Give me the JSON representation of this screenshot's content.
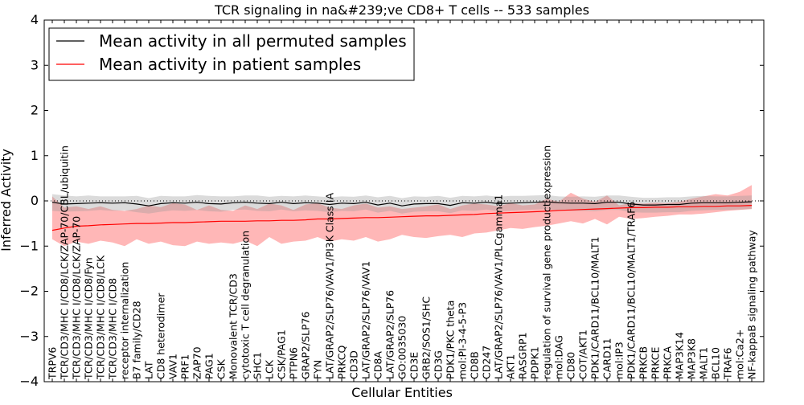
{
  "chart_data": {
    "type": "line",
    "title": "TCR signaling in na&#239;ve CD8+ T cells -- 533 samples",
    "xlabel": "Cellular Entities",
    "ylabel": "Inferred Activity",
    "ylim": [
      -4,
      4
    ],
    "yticks": [
      -4,
      -3,
      -2,
      -1,
      0,
      1,
      2,
      3,
      4
    ],
    "ytick_labels": [
      "−4",
      "−3",
      "−2",
      "−1",
      "0",
      "1",
      "2",
      "3",
      "4"
    ],
    "baseline": 0,
    "legend": {
      "location": "top-left",
      "entries": [
        {
          "label": "Mean activity in all permuted samples",
          "color": "#000000"
        },
        {
          "label": "Mean activity in patient samples",
          "color": "#ff0000"
        }
      ]
    },
    "categories": [
      "TRPV6",
      "TCR/CD3/MHC I/CD8/LCK/ZAP-70/CBL/ubiquitin",
      "TCR/CD3/MHC I/CD8/LCK/ZAP-70",
      "TCR/CD3/MHC I/CD8/Fyn",
      "TCR/CD3/MHC I/CD8/LCK",
      "TCR/CD3/MHC I/CD8",
      "receptor internalization",
      "B7 family/CD28",
      "LAT",
      "CD8 heterodimer",
      "VAV1",
      "PRF1",
      "ZAP70",
      "PAG1",
      "CSK",
      "Monovalent TCR/CD3",
      "cytotoxic T cell degranulation",
      "SHC1",
      "LCK",
      "CSK/PAG1",
      "PTPN6",
      "GRAP2/SLP76",
      "FYN",
      "LAT/GRAP2/SLP76/VAV1/PI3K Class IA",
      "PRKCQ",
      "CD3D",
      "LAT/GRAP2/SLP76/VAV1",
      "CD8A",
      "LAT/GRAP2/SLP76",
      "GO:0035030",
      "CD3E",
      "GRB2/SOS1/SHC",
      "CD3G",
      "PDK1/PKC theta",
      "mol:PI-3-4-5-P3",
      "CD8B",
      "CD247",
      "LAT/GRAP2/SLP76/VAV1/PLCgamma1",
      "AKT1",
      "RASGRP1",
      "PDPK1",
      "regulation of survival gene product expression",
      "mol:DAG",
      "CD80",
      "COT/AKT1",
      "PDK1/CARD11/BCL10/MALT1",
      "CARD11",
      "mol:IP3",
      "PDK1/CARD11/BCL10/MALT1/TRAF6",
      "PRKCB",
      "PRKCE",
      "PRKCA",
      "MAP3K14",
      "MAP3K8",
      "MALT1",
      "BCL10",
      "TRAF6",
      "mol:Ca2+",
      "NF-kappaB signaling pathway"
    ],
    "series": [
      {
        "name": "Mean activity in all permuted samples",
        "color": "#000000",
        "values": [
          -0.03,
          -0.07,
          -0.06,
          -0.05,
          -0.04,
          -0.05,
          -0.04,
          -0.07,
          -0.11,
          -0.06,
          -0.04,
          -0.05,
          -0.03,
          -0.06,
          -0.07,
          -0.04,
          -0.03,
          -0.05,
          -0.06,
          -0.03,
          -0.06,
          -0.04,
          -0.05,
          -0.08,
          -0.05,
          -0.06,
          -0.03,
          -0.09,
          -0.05,
          -0.11,
          -0.07,
          -0.06,
          -0.06,
          -0.1,
          -0.04,
          -0.05,
          -0.03,
          -0.06,
          -0.05,
          -0.04,
          -0.03,
          -0.02,
          -0.04,
          -0.05,
          -0.05,
          -0.06,
          -0.03,
          -0.03,
          -0.07,
          -0.09,
          -0.09,
          -0.08,
          -0.08,
          -0.05,
          -0.04,
          -0.04,
          -0.04,
          -0.03,
          -0.02
        ],
        "band_upper": [
          0.15,
          0.12,
          0.1,
          0.12,
          0.1,
          0.1,
          0.1,
          0.11,
          0.06,
          0.11,
          0.1,
          0.1,
          0.13,
          0.11,
          0.1,
          0.1,
          0.12,
          0.12,
          0.09,
          0.11,
          0.1,
          0.12,
          0.1,
          0.08,
          0.1,
          0.09,
          0.12,
          0.08,
          0.11,
          0.06,
          0.1,
          0.09,
          0.11,
          0.07,
          0.11,
          0.1,
          0.12,
          0.09,
          0.11,
          0.11,
          0.12,
          0.13,
          0.1,
          0.09,
          0.1,
          0.09,
          0.12,
          0.12,
          0.09,
          0.07,
          0.07,
          0.08,
          0.08,
          0.1,
          0.11,
          0.1,
          0.1,
          0.11,
          0.12
        ],
        "band_lower": [
          -0.22,
          -0.24,
          -0.23,
          -0.22,
          -0.2,
          -0.22,
          -0.21,
          -0.25,
          -0.28,
          -0.24,
          -0.21,
          -0.22,
          -0.2,
          -0.23,
          -0.24,
          -0.2,
          -0.19,
          -0.22,
          -0.23,
          -0.19,
          -0.23,
          -0.21,
          -0.22,
          -0.25,
          -0.22,
          -0.23,
          -0.19,
          -0.26,
          -0.22,
          -0.28,
          -0.24,
          -0.23,
          -0.23,
          -0.27,
          -0.21,
          -0.22,
          -0.19,
          -0.23,
          -0.22,
          -0.2,
          -0.19,
          -0.18,
          -0.21,
          -0.22,
          -0.22,
          -0.23,
          -0.2,
          -0.2,
          -0.25,
          -0.26,
          -0.26,
          -0.25,
          -0.25,
          -0.22,
          -0.21,
          -0.2,
          -0.2,
          -0.19,
          -0.18
        ]
      },
      {
        "name": "Mean activity in patient samples",
        "color": "#ff0000",
        "values": [
          -0.65,
          -0.6,
          -0.56,
          -0.55,
          -0.53,
          -0.52,
          -0.51,
          -0.5,
          -0.5,
          -0.49,
          -0.48,
          -0.48,
          -0.47,
          -0.46,
          -0.45,
          -0.45,
          -0.45,
          -0.44,
          -0.44,
          -0.43,
          -0.43,
          -0.42,
          -0.4,
          -0.4,
          -0.39,
          -0.38,
          -0.37,
          -0.37,
          -0.36,
          -0.35,
          -0.34,
          -0.33,
          -0.33,
          -0.32,
          -0.31,
          -0.3,
          -0.28,
          -0.27,
          -0.26,
          -0.25,
          -0.24,
          -0.23,
          -0.21,
          -0.2,
          -0.19,
          -0.18,
          -0.17,
          -0.16,
          -0.15,
          -0.15,
          -0.14,
          -0.14,
          -0.13,
          -0.13,
          -0.12,
          -0.12,
          -0.11,
          -0.11,
          -0.1
        ],
        "band_upper": [
          0.1,
          -0.15,
          -0.12,
          -0.18,
          -0.12,
          -0.2,
          -0.22,
          -0.18,
          -0.1,
          -0.14,
          -0.05,
          -0.08,
          -0.2,
          -0.1,
          -0.2,
          -0.22,
          -0.1,
          -0.18,
          -0.06,
          -0.1,
          -0.2,
          -0.08,
          -0.05,
          -0.15,
          -0.18,
          -0.1,
          -0.06,
          -0.15,
          -0.12,
          -0.18,
          -0.15,
          -0.12,
          -0.08,
          -0.18,
          -0.1,
          -0.06,
          -0.08,
          -0.12,
          -0.05,
          -0.1,
          -0.08,
          0.05,
          -0.02,
          0.18,
          0.05,
          -0.02,
          0.12,
          -0.1,
          -0.05,
          -0.06,
          -0.04,
          -0.05,
          -0.02,
          0.05,
          0.1,
          0.15,
          0.12,
          0.2,
          0.35
        ],
        "band_lower": [
          -0.85,
          -1.0,
          -0.9,
          -0.95,
          -0.88,
          -0.92,
          -1.0,
          -0.85,
          -0.95,
          -0.9,
          -0.98,
          -1.0,
          -0.9,
          -0.95,
          -0.92,
          -0.95,
          -0.88,
          -1.0,
          -0.8,
          -0.95,
          -0.9,
          -0.88,
          -0.8,
          -0.9,
          -0.85,
          -0.88,
          -0.8,
          -0.9,
          -0.85,
          -0.75,
          -0.8,
          -0.82,
          -0.78,
          -0.75,
          -0.8,
          -0.72,
          -0.7,
          -0.65,
          -0.6,
          -0.62,
          -0.58,
          -0.55,
          -0.5,
          -0.45,
          -0.5,
          -0.4,
          -0.52,
          -0.35,
          -0.4,
          -0.38,
          -0.35,
          -0.33,
          -0.3,
          -0.3,
          -0.28,
          -0.25,
          -0.22,
          -0.2,
          -0.18
        ]
      }
    ]
  }
}
